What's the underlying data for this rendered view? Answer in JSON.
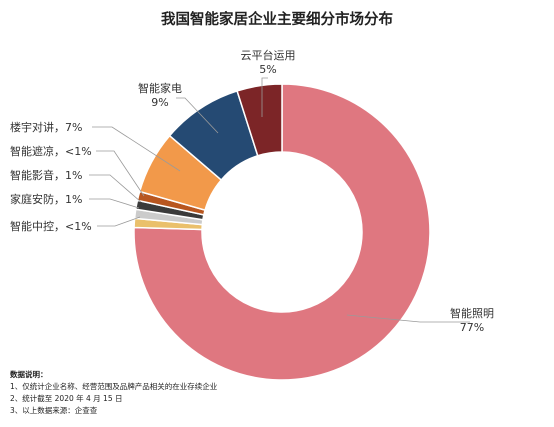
{
  "chart_data": {
    "type": "pie",
    "donut": true,
    "title": "我国智能家居企业主要细分市场分布",
    "slices": [
      {
        "name": "智能照明",
        "value": 77,
        "label": "77%",
        "color": "#df7780"
      },
      {
        "name": "智能中控",
        "value": 1,
        "label": "<1%",
        "color": "#eac06b"
      },
      {
        "name": "家庭安防",
        "value": 1,
        "label": "1%",
        "color": "#cbcbcb"
      },
      {
        "name": "智能影音",
        "value": 1,
        "label": "1%",
        "color": "#3a3a3a"
      },
      {
        "name": "智能遮凉",
        "value": 1,
        "label": "<1%",
        "color": "#b8561f"
      },
      {
        "name": "楼宇对讲",
        "value": 7,
        "label": "7%",
        "color": "#f2994a"
      },
      {
        "name": "智能家电",
        "value": 9,
        "label": "9%",
        "color": "#254a73"
      },
      {
        "name": "云平台运用",
        "value": 5,
        "label": "5%",
        "color": "#7c2527"
      }
    ]
  },
  "labels": {
    "lighting_name": "智能照明",
    "lighting_pct": "77%",
    "control": "智能中控，<1%",
    "security": "家庭安防，1%",
    "av": "智能影音，1%",
    "shading": "智能遮凉，<1%",
    "intercom": "楼宇对讲，7%",
    "appliance_name": "智能家电",
    "appliance_pct": "9%",
    "cloud_name": "云平台运用",
    "cloud_pct": "5%"
  },
  "notes": {
    "heading": "数据说明：",
    "line1": "1、仅统计企业名称、经营范围及品牌产品相关的在业存续企业",
    "line2": "2、统计截至 2020 年 4 月 15 日",
    "line3": "3、以上数据来源：企查查"
  }
}
